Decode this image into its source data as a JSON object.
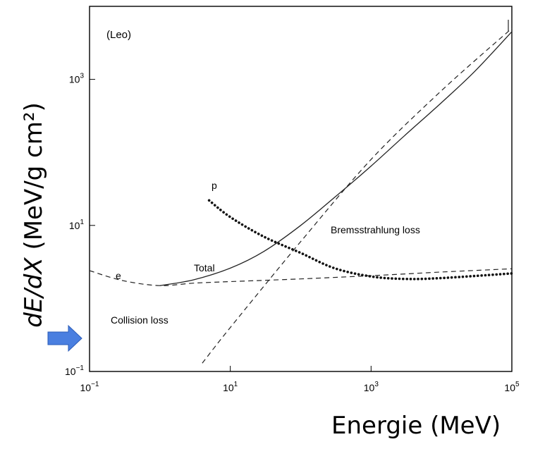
{
  "chart_data": {
    "type": "line",
    "xscale": "log",
    "yscale": "log",
    "xlim": [
      0.1,
      100000
    ],
    "ylim": [
      0.1,
      10000
    ],
    "xticks": [
      {
        "value": 0.1,
        "base": "10",
        "exp": "−1"
      },
      {
        "value": 10,
        "base": "10",
        "exp": "1"
      },
      {
        "value": 1000,
        "base": "10",
        "exp": "3"
      },
      {
        "value": 100000,
        "base": "10",
        "exp": "5"
      }
    ],
    "yticks": [
      {
        "value": 0.1,
        "base": "10",
        "exp": "−1"
      },
      {
        "value": 10,
        "base": "10",
        "exp": "1"
      },
      {
        "value": 1000,
        "base": "10",
        "exp": "3"
      }
    ],
    "xlabel": "Energie (MeV)",
    "ylabel": "dE/dX (MeV/g cm²)",
    "grid": false,
    "annotations": {
      "source": "(Leo)",
      "electron": "e",
      "proton": "p",
      "total": "Total",
      "collision": "Collision loss",
      "brems": "Bremsstrahlung loss"
    },
    "series": [
      {
        "style": "solid",
        "x": [
          1,
          3,
          10,
          30,
          100,
          300,
          1000,
          3000,
          10000,
          30000,
          100000
        ],
        "y": [
          1.5,
          1.8,
          2.6,
          4.4,
          10,
          24,
          65,
          170,
          480,
          1300,
          4500
        ]
      },
      {
        "style": "dashed",
        "x": [
          0.1,
          0.3,
          1,
          3,
          10,
          100,
          1000,
          10000,
          100000
        ],
        "y": [
          2.4,
          1.75,
          1.5,
          1.62,
          1.7,
          1.85,
          2.05,
          2.3,
          2.55
        ]
      },
      {
        "style": "dashed",
        "x": [
          4,
          10,
          100,
          1000,
          10000,
          100000
        ],
        "y": [
          0.13,
          0.4,
          6,
          80,
          700,
          5000
        ]
      },
      {
        "style": "dotted",
        "x": [
          5,
          10,
          30,
          100,
          300,
          1000,
          3000,
          10000,
          100000
        ],
        "y": [
          22,
          13,
          7,
          4.2,
          2.6,
          2.0,
          1.85,
          1.9,
          2.2
        ]
      }
    ],
    "arrow_color": "#4a7fe0"
  }
}
